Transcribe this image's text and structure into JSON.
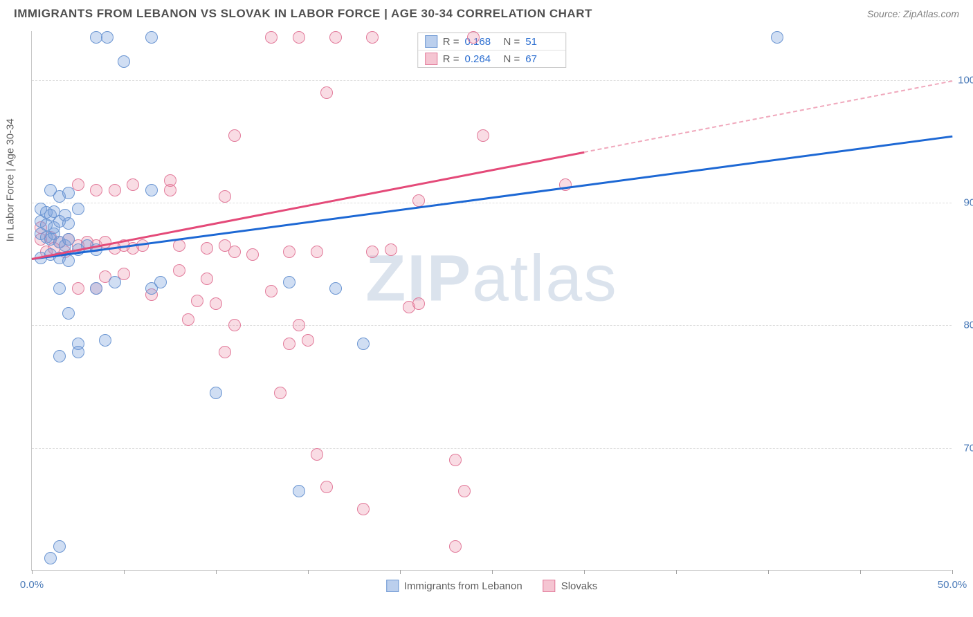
{
  "header": {
    "title": "IMMIGRANTS FROM LEBANON VS SLOVAK IN LABOR FORCE | AGE 30-34 CORRELATION CHART",
    "source_prefix": "Source: ",
    "source_name": "ZipAtlas.com"
  },
  "watermark": {
    "zip": "ZIP",
    "atlas": "atlas"
  },
  "chart": {
    "type": "scatter",
    "y_title": "In Labor Force | Age 30-34",
    "xlim": [
      0,
      50
    ],
    "ylim": [
      60,
      104
    ],
    "x_ticks": [
      0,
      5,
      10,
      15,
      20,
      25,
      30,
      35,
      40,
      45,
      50
    ],
    "x_tick_labels": {
      "0": "0.0%",
      "50": "50.0%"
    },
    "y_ticks": [
      70,
      80,
      90,
      100
    ],
    "y_tick_labels": [
      "70.0%",
      "80.0%",
      "90.0%",
      "100.0%"
    ],
    "background_color": "#ffffff",
    "grid_color": "#dcdcdc",
    "axis_label_color": "#4a7ab8",
    "marker_size": 18,
    "series": {
      "blue": {
        "label": "Immigrants from Lebanon",
        "fill": "rgba(120,160,220,0.35)",
        "stroke": "#6a95d2",
        "R": "0.168",
        "N": "51",
        "trend": {
          "x1": 0,
          "y1": 85.5,
          "x2": 50,
          "y2": 95.5,
          "color": "#1d68d4"
        },
        "points": [
          [
            3.5,
            103.5
          ],
          [
            4.1,
            103.5
          ],
          [
            6.5,
            103.5
          ],
          [
            40.5,
            103.5
          ],
          [
            5.0,
            101.5
          ],
          [
            1.0,
            91.0
          ],
          [
            1.5,
            90.5
          ],
          [
            2.0,
            90.8
          ],
          [
            2.5,
            89.5
          ],
          [
            6.5,
            91.0
          ],
          [
            0.5,
            87.5
          ],
          [
            0.8,
            87.2
          ],
          [
            1.0,
            87.0
          ],
          [
            1.2,
            87.5
          ],
          [
            1.5,
            86.8
          ],
          [
            1.8,
            86.5
          ],
          [
            2.0,
            87.0
          ],
          [
            2.5,
            86.2
          ],
          [
            3.0,
            86.5
          ],
          [
            3.5,
            86.2
          ],
          [
            0.5,
            88.5
          ],
          [
            0.8,
            88.2
          ],
          [
            1.2,
            88.0
          ],
          [
            1.5,
            88.5
          ],
          [
            2.0,
            88.3
          ],
          [
            0.5,
            85.5
          ],
          [
            1.0,
            85.8
          ],
          [
            1.5,
            85.5
          ],
          [
            2.0,
            85.3
          ],
          [
            1.5,
            83.0
          ],
          [
            3.5,
            83.0
          ],
          [
            4.5,
            83.5
          ],
          [
            6.5,
            83.0
          ],
          [
            2.0,
            81.0
          ],
          [
            7.0,
            83.5
          ],
          [
            14.0,
            83.5
          ],
          [
            16.5,
            83.0
          ],
          [
            2.5,
            78.5
          ],
          [
            4.0,
            78.8
          ],
          [
            1.5,
            77.5
          ],
          [
            2.5,
            77.8
          ],
          [
            10.0,
            74.5
          ],
          [
            18.0,
            78.5
          ],
          [
            14.5,
            66.5
          ],
          [
            1.5,
            62.0
          ],
          [
            1.0,
            61.0
          ],
          [
            0.5,
            89.5
          ],
          [
            0.8,
            89.2
          ],
          [
            1.0,
            89.0
          ],
          [
            1.2,
            89.3
          ],
          [
            1.8,
            89.0
          ]
        ]
      },
      "pink": {
        "label": "Slovaks",
        "fill": "rgba(235,140,165,0.30)",
        "stroke": "#e27a9a",
        "R": "0.264",
        "N": "67",
        "trend_solid": {
          "x1": 0,
          "y1": 85.5,
          "x2": 30,
          "y2": 94.2,
          "color": "#e44a79"
        },
        "trend_dash": {
          "x1": 30,
          "y1": 94.2,
          "x2": 50,
          "y2": 100.0,
          "color": "#f0a8bc"
        },
        "points": [
          [
            13.0,
            103.5
          ],
          [
            14.5,
            103.5
          ],
          [
            16.5,
            103.5
          ],
          [
            18.5,
            103.5
          ],
          [
            24.0,
            103.5
          ],
          [
            16.0,
            99.0
          ],
          [
            11.0,
            95.5
          ],
          [
            24.5,
            95.5
          ],
          [
            2.5,
            91.5
          ],
          [
            3.5,
            91.0
          ],
          [
            4.5,
            91.0
          ],
          [
            5.5,
            91.5
          ],
          [
            7.5,
            91.0
          ],
          [
            7.5,
            91.8
          ],
          [
            10.5,
            90.5
          ],
          [
            21.0,
            90.2
          ],
          [
            29.0,
            91.5
          ],
          [
            0.5,
            87.0
          ],
          [
            1.0,
            87.2
          ],
          [
            1.5,
            86.8
          ],
          [
            2.0,
            87.0
          ],
          [
            2.5,
            86.5
          ],
          [
            3.0,
            86.8
          ],
          [
            3.5,
            86.5
          ],
          [
            4.0,
            86.8
          ],
          [
            4.5,
            86.3
          ],
          [
            5.0,
            86.5
          ],
          [
            5.5,
            86.3
          ],
          [
            6.0,
            86.5
          ],
          [
            8.0,
            86.5
          ],
          [
            9.5,
            86.3
          ],
          [
            10.5,
            86.5
          ],
          [
            11.0,
            86.0
          ],
          [
            12.0,
            85.8
          ],
          [
            14.0,
            86.0
          ],
          [
            15.5,
            86.0
          ],
          [
            18.5,
            86.0
          ],
          [
            19.5,
            86.2
          ],
          [
            4.0,
            84.0
          ],
          [
            5.0,
            84.2
          ],
          [
            8.0,
            84.5
          ],
          [
            9.5,
            83.8
          ],
          [
            2.5,
            83.0
          ],
          [
            3.5,
            83.0
          ],
          [
            6.5,
            82.5
          ],
          [
            9.0,
            82.0
          ],
          [
            10.0,
            81.8
          ],
          [
            13.0,
            82.8
          ],
          [
            20.5,
            81.5
          ],
          [
            21.0,
            81.8
          ],
          [
            8.5,
            80.5
          ],
          [
            11.0,
            80.0
          ],
          [
            14.5,
            80.0
          ],
          [
            14.0,
            78.5
          ],
          [
            15.0,
            78.8
          ],
          [
            10.5,
            77.8
          ],
          [
            13.5,
            74.5
          ],
          [
            15.5,
            69.5
          ],
          [
            23.0,
            69.0
          ],
          [
            16.0,
            66.8
          ],
          [
            23.5,
            66.5
          ],
          [
            18.0,
            65.0
          ],
          [
            23.0,
            62.0
          ],
          [
            0.8,
            86.0
          ],
          [
            1.2,
            86.3
          ],
          [
            1.8,
            86.0
          ],
          [
            0.5,
            88.0
          ]
        ]
      }
    }
  },
  "stat_box": {
    "r_label": "R =",
    "n_label": "N ="
  },
  "legend": {
    "items": [
      "blue",
      "pink"
    ]
  }
}
